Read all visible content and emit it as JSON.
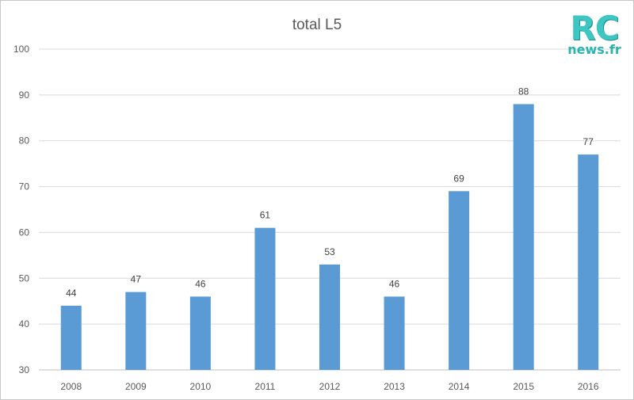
{
  "logo": {
    "main": "RC",
    "sub": "news.fr"
  },
  "colors": {
    "bar": "#5b9bd5",
    "grid": "#d9d9d9",
    "text": "#595959",
    "logo": "#3ec6c2"
  },
  "chart_data": {
    "type": "bar",
    "title": "total L5",
    "xlabel": "",
    "ylabel": "",
    "ylim": [
      30,
      100
    ],
    "yticks": [
      30,
      40,
      50,
      60,
      70,
      80,
      90,
      100
    ],
    "grid": true,
    "legend": "none",
    "categories": [
      "2008",
      "2009",
      "2010",
      "2011",
      "2012",
      "2013",
      "2014",
      "2015",
      "2016"
    ],
    "values": [
      44,
      47,
      46,
      61,
      53,
      46,
      69,
      88,
      77
    ]
  }
}
